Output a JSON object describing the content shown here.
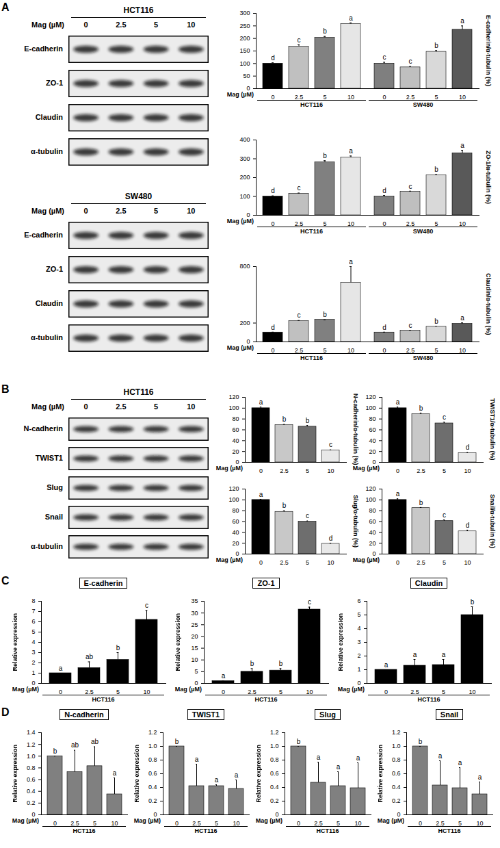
{
  "chart_data": [
    {
      "type": "blot",
      "panel": "A",
      "title": "HCT116",
      "x_label": "Mag (µM)",
      "categories": [
        "0",
        "2.5",
        "5",
        "10"
      ],
      "rows": [
        "E-cadherin",
        "ZO-1",
        "Claudin",
        "α-tubulin"
      ]
    },
    {
      "type": "blot",
      "title": "SW480",
      "x_label": "Mag (µM)",
      "categories": [
        "0",
        "2.5",
        "5",
        "10"
      ],
      "rows": [
        "E-cadherin",
        "ZO-1",
        "Claudin",
        "α-tubulin"
      ]
    },
    {
      "type": "bar",
      "y_label": "E-cadherin/α-tubulin (%)",
      "x_label": "Mag (µM)",
      "ylim": [
        0,
        300
      ],
      "yticks": [
        0,
        50,
        100,
        150,
        200,
        250,
        300
      ],
      "groups": [
        {
          "name": "HCT116",
          "categories": [
            "0",
            "2.5",
            "5",
            "10"
          ],
          "values": [
            100,
            168,
            203,
            258
          ],
          "errors": [
            3,
            7,
            5,
            4
          ],
          "letters": [
            "d",
            "c",
            "b",
            "a"
          ],
          "colors": [
            "#000000",
            "#c0c0c0",
            "#808080",
            "#e6e6e6"
          ]
        },
        {
          "name": "SW480",
          "categories": [
            "0",
            "2.5",
            "5",
            "10"
          ],
          "values": [
            100,
            85,
            147,
            235
          ],
          "errors": [
            5,
            3,
            5,
            15
          ],
          "letters": [
            "c",
            "c",
            "b",
            "a"
          ],
          "colors": [
            "#7f7f7f",
            "#bfbfbf",
            "#d9d9d9",
            "#595959"
          ]
        }
      ]
    },
    {
      "type": "bar",
      "y_label": "ZO-1/α-tubulin (%)",
      "x_label": "Mag (µM)",
      "ylim": [
        0,
        400
      ],
      "yticks": [
        0,
        100,
        200,
        300,
        400
      ],
      "groups": [
        {
          "name": "HCT116",
          "categories": [
            "0",
            "2.5",
            "5",
            "10"
          ],
          "values": [
            100,
            115,
            282,
            307
          ],
          "errors": [
            3,
            3,
            8,
            8
          ],
          "letters": [
            "d",
            "c",
            "b",
            "a"
          ],
          "colors": [
            "#000000",
            "#c0c0c0",
            "#808080",
            "#e6e6e6"
          ]
        },
        {
          "name": "SW480",
          "categories": [
            "0",
            "2.5",
            "5",
            "10"
          ],
          "values": [
            100,
            125,
            213,
            330
          ],
          "errors": [
            5,
            3,
            3,
            15
          ],
          "letters": [
            "d",
            "c",
            "b",
            "a"
          ],
          "colors": [
            "#7f7f7f",
            "#bfbfbf",
            "#d9d9d9",
            "#595959"
          ]
        }
      ]
    },
    {
      "type": "bar",
      "y_label": "Claudin/α-tubulin (%)",
      "x_label": "Mag (µM)",
      "ylim": [
        0,
        800
      ],
      "yticks": [
        0,
        200,
        800
      ],
      "groups": [
        {
          "name": "HCT116",
          "categories": [
            "0",
            "2.5",
            "5",
            "10"
          ],
          "values": [
            100,
            222,
            235,
            630
          ],
          "errors": [
            3,
            5,
            0,
            170
          ],
          "letters": [
            "d",
            "c",
            "b",
            "a"
          ],
          "colors": [
            "#000000",
            "#c0c0c0",
            "#808080",
            "#e6e6e6"
          ]
        },
        {
          "name": "SW480",
          "categories": [
            "0",
            "2.5",
            "5",
            "10"
          ],
          "values": [
            100,
            120,
            162,
            192
          ],
          "errors": [
            3,
            3,
            5,
            10
          ],
          "letters": [
            "d",
            "c",
            "b",
            "a"
          ],
          "colors": [
            "#7f7f7f",
            "#bfbfbf",
            "#d9d9d9",
            "#595959"
          ]
        }
      ]
    },
    {
      "type": "blot",
      "panel": "B",
      "title": "HCT116",
      "x_label": "Mag (µM)",
      "categories": [
        "0",
        "2.5",
        "5",
        "10"
      ],
      "rows": [
        "N-cadherin",
        "TWIST1",
        "Slug",
        "Snail",
        "α-tubulin"
      ]
    },
    {
      "type": "bar",
      "y_label": "N-cadherin/α-tubulin (%)",
      "x_label": "Mag (µM)",
      "ylim": [
        0,
        120
      ],
      "yticks": [
        0,
        20,
        40,
        60,
        80,
        100,
        120
      ],
      "groups": [
        {
          "categories": [
            "0",
            "2.5",
            "5",
            "10"
          ],
          "values": [
            100,
            69,
            66,
            22
          ],
          "errors": [
            2,
            1,
            2,
            1
          ],
          "letters": [
            "a",
            "b",
            "b",
            "c"
          ],
          "colors": [
            "#000000",
            "#c8c8c8",
            "#6e6e6e",
            "#e8e8e8"
          ]
        }
      ]
    },
    {
      "type": "bar",
      "y_label": "TWIST1/α-tubulin (%)",
      "x_label": "Mag (µM)",
      "ylim": [
        0,
        120
      ],
      "yticks": [
        0,
        20,
        40,
        60,
        80,
        100,
        120
      ],
      "groups": [
        {
          "categories": [
            "0",
            "2.5",
            "5",
            "10"
          ],
          "values": [
            100,
            89,
            72,
            17
          ],
          "errors": [
            2,
            2,
            2,
            1
          ],
          "letters": [
            "a",
            "b",
            "c",
            "d"
          ],
          "colors": [
            "#000000",
            "#c8c8c8",
            "#6e6e6e",
            "#e8e8e8"
          ]
        }
      ]
    },
    {
      "type": "bar",
      "y_label": "Slug/α-tubulin (%)",
      "x_label": "Mag (µM)",
      "ylim": [
        0,
        120
      ],
      "yticks": [
        0,
        20,
        40,
        60,
        80,
        100,
        120
      ],
      "groups": [
        {
          "categories": [
            "0",
            "2.5",
            "5",
            "10"
          ],
          "values": [
            100,
            78,
            60,
            19
          ],
          "errors": [
            1,
            2,
            1,
            1
          ],
          "letters": [
            "a",
            "b",
            "c",
            "d"
          ],
          "colors": [
            "#000000",
            "#c8c8c8",
            "#6e6e6e",
            "#e8e8e8"
          ]
        }
      ]
    },
    {
      "type": "bar",
      "y_label": "Snail/α-tubulin (%)",
      "x_label": "Mag (µM)",
      "ylim": [
        0,
        120
      ],
      "yticks": [
        0,
        20,
        40,
        60,
        80,
        100,
        120
      ],
      "groups": [
        {
          "categories": [
            "0",
            "2.5",
            "5",
            "10"
          ],
          "values": [
            100,
            85,
            61,
            42
          ],
          "errors": [
            2,
            1,
            2,
            2
          ],
          "letters": [
            "a",
            "b",
            "c",
            "d"
          ],
          "colors": [
            "#000000",
            "#c8c8c8",
            "#6e6e6e",
            "#e8e8e8"
          ]
        }
      ]
    },
    {
      "type": "bar",
      "panel": "C",
      "title": "E-cadherin",
      "y_label": "Relative expression",
      "x_label": "Mag (µM)",
      "ylim": [
        0,
        8
      ],
      "yticks": [
        0,
        1,
        2,
        3,
        4,
        5,
        6,
        7,
        8
      ],
      "groups": [
        {
          "name": "HCT116",
          "categories": [
            "0",
            "2.5",
            "5",
            "10"
          ],
          "values": [
            1,
            1.5,
            2.3,
            6.2
          ],
          "errors": [
            0,
            0.6,
            0.7,
            0.9
          ],
          "letters": [
            "a",
            "ab",
            "b",
            "c"
          ],
          "color": "#000000"
        }
      ]
    },
    {
      "type": "bar",
      "title": "ZO-1",
      "y_label": "Relative expression",
      "x_label": "Mag (µM)",
      "ylim": [
        0,
        35
      ],
      "yticks": [
        0,
        5,
        10,
        15,
        20,
        25,
        30,
        35
      ],
      "groups": [
        {
          "name": "HCT116",
          "categories": [
            "0",
            "2.5",
            "5",
            "10"
          ],
          "values": [
            1,
            5,
            5.5,
            31.5
          ],
          "errors": [
            0,
            1.3,
            0.8,
            1
          ],
          "letters": [
            "a",
            "b",
            "b",
            "c"
          ],
          "color": "#000000"
        }
      ]
    },
    {
      "type": "bar",
      "title": "Claudin",
      "y_label": "Relative expression",
      "x_label": "Mag (µM)",
      "ylim": [
        0,
        6
      ],
      "yticks": [
        0,
        1,
        2,
        3,
        4,
        5,
        6
      ],
      "groups": [
        {
          "name": "HCT116",
          "categories": [
            "0",
            "2.5",
            "5",
            "10"
          ],
          "values": [
            1,
            1.3,
            1.35,
            5
          ],
          "errors": [
            0,
            0.45,
            0.4,
            0.6
          ],
          "letters": [
            "a",
            "a",
            "a",
            "b"
          ],
          "color": "#000000"
        }
      ]
    },
    {
      "type": "bar",
      "panel": "D",
      "title": "N-cadherin",
      "y_label": "Relative expression",
      "x_label": "Mag (µM)",
      "ylim": [
        0,
        1.4
      ],
      "yticks": [
        0,
        0.2,
        0.4,
        0.6,
        0.8,
        {
          "value": 1,
          "label": "1.0"
        },
        1.2,
        1.4
      ],
      "groups": [
        {
          "name": "HCT116",
          "categories": [
            "0",
            "2.5",
            "5",
            "10"
          ],
          "values": [
            1,
            0.73,
            0.83,
            0.35
          ],
          "errors": [
            0,
            0.37,
            0.33,
            0.28
          ],
          "letters": [
            "b",
            "ab",
            "ab",
            "a"
          ],
          "color": "#808080"
        }
      ]
    },
    {
      "type": "bar",
      "title": "TWIST1",
      "y_label": "Relative expression",
      "x_label": "Mag (µM)",
      "ylim": [
        0,
        1.2
      ],
      "yticks": [
        0,
        0.2,
        0.4,
        0.6,
        0.8,
        {
          "value": 1,
          "label": "1.0"
        },
        1.2
      ],
      "groups": [
        {
          "name": "HCT116",
          "categories": [
            "0",
            "2.5",
            "5",
            "10"
          ],
          "values": [
            1,
            0.42,
            0.42,
            0.38
          ],
          "errors": [
            0,
            0.32,
            0.02,
            0.13
          ],
          "letters": [
            "b",
            "a",
            "a",
            "a"
          ],
          "color": "#808080"
        }
      ]
    },
    {
      "type": "bar",
      "title": "Slug",
      "y_label": "Relative expression",
      "x_label": "Mag (µM)",
      "ylim": [
        0,
        1.2
      ],
      "yticks": [
        0,
        0.2,
        0.4,
        0.6,
        0.8,
        {
          "value": 1,
          "label": "1.0"
        },
        1.2
      ],
      "groups": [
        {
          "name": "HCT116",
          "categories": [
            "0",
            "2.5",
            "5",
            "10"
          ],
          "values": [
            1,
            0.47,
            0.42,
            0.39
          ],
          "errors": [
            0,
            0.3,
            0.21,
            0.37
          ],
          "letters": [
            "b",
            "a",
            "a",
            "a"
          ],
          "color": "#808080"
        }
      ]
    },
    {
      "type": "bar",
      "title": "Snail",
      "y_label": "Relative expression",
      "x_label": "Mag (µM)",
      "ylim": [
        0,
        1.2
      ],
      "yticks": [
        0,
        0.2,
        0.4,
        0.6,
        0.8,
        {
          "value": 1,
          "label": "1.0"
        },
        1.2
      ],
      "groups": [
        {
          "name": "HCT116",
          "categories": [
            "0",
            "2.5",
            "5",
            "10"
          ],
          "values": [
            1,
            0.43,
            0.39,
            0.3
          ],
          "errors": [
            0,
            0.36,
            0.3,
            0.18
          ],
          "letters": [
            "b",
            "a",
            "a",
            "a"
          ],
          "color": "#808080"
        }
      ]
    }
  ]
}
